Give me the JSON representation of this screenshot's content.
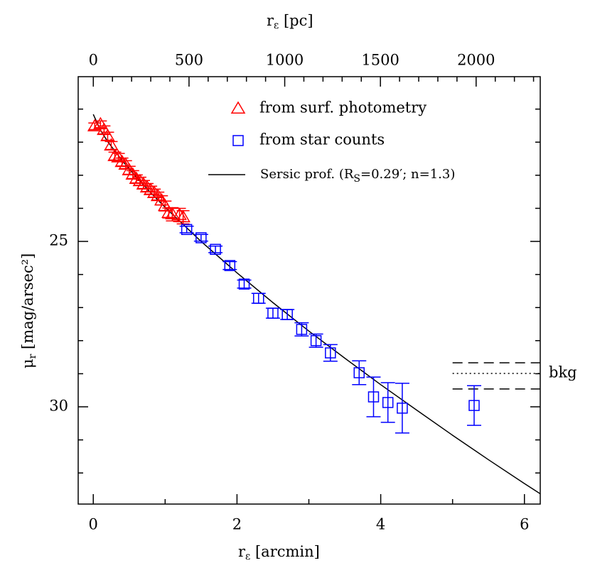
{
  "chart_data": {
    "type": "scatter",
    "xlabel": [
      "r",
      "ε",
      " [arcmin]"
    ],
    "x2label": [
      "r",
      "ε",
      " [pc]"
    ],
    "ylabel": [
      "μ",
      "r",
      " [mag/arsec²]"
    ],
    "xlim": [
      -0.21,
      6.22
    ],
    "xticks": [
      0,
      2,
      4,
      6
    ],
    "xminorticks": [
      1,
      3,
      5
    ],
    "x2lim": [
      -79,
      2335
    ],
    "x2ticks": [
      0,
      500,
      1000,
      1500,
      2000
    ],
    "x2minorticks": [
      100,
      200,
      300,
      400,
      600,
      700,
      800,
      900,
      1100,
      1200,
      1300,
      1400,
      1600,
      1700,
      1800,
      1900,
      2100,
      2200,
      2300
    ],
    "ylim": [
      32.94,
      20.02
    ],
    "yticks": [
      25,
      30
    ],
    "yminorticks": [
      21,
      22,
      23,
      24,
      26,
      27,
      28,
      29,
      31,
      32
    ],
    "series": [
      {
        "name": "from surf. photometry",
        "color": "#ff0000",
        "marker": "triangle",
        "x": [
          0.02,
          0.1,
          0.15,
          0.2,
          0.25,
          0.3,
          0.35,
          0.4,
          0.45,
          0.5,
          0.55,
          0.6,
          0.65,
          0.7,
          0.75,
          0.8,
          0.85,
          0.9,
          0.95,
          1.0,
          1.05,
          1.1,
          1.2,
          1.25
        ],
        "values": [
          21.52,
          21.46,
          21.63,
          21.82,
          22.1,
          22.42,
          22.46,
          22.6,
          22.68,
          22.85,
          22.98,
          23.11,
          23.18,
          23.28,
          23.37,
          23.45,
          23.54,
          23.63,
          23.76,
          23.93,
          24.14,
          24.18,
          24.2,
          24.27
        ],
        "errors": [
          0.1,
          0.1,
          0.12,
          0.12,
          0.12,
          0.12,
          0.12,
          0.12,
          0.12,
          0.12,
          0.12,
          0.12,
          0.12,
          0.12,
          0.12,
          0.12,
          0.12,
          0.12,
          0.14,
          0.15,
          0.15,
          0.2,
          0.2,
          0.2
        ]
      },
      {
        "name": "from star counts",
        "color": "#0000ff",
        "marker": "square",
        "x": [
          1.3,
          1.5,
          1.7,
          1.9,
          2.1,
          2.3,
          2.5,
          2.7,
          2.9,
          3.1,
          3.3,
          3.7,
          3.9,
          4.1,
          4.3,
          5.3
        ],
        "values": [
          24.64,
          24.89,
          25.24,
          25.73,
          26.29,
          26.72,
          27.17,
          27.21,
          27.66,
          28.0,
          28.37,
          28.97,
          29.7,
          29.87,
          30.04,
          29.96
        ],
        "errors": [
          0.1,
          0.1,
          0.1,
          0.12,
          0.12,
          0.15,
          0.15,
          0.15,
          0.2,
          0.2,
          0.25,
          0.36,
          0.6,
          0.6,
          0.75,
          0.6
        ]
      }
    ],
    "line": {
      "name": [
        "Sersic prof. (R",
        "S",
        "=0.29′; n=1.3)"
      ],
      "color": "#000000",
      "x": [
        0,
        0.1,
        0.2,
        0.4,
        0.6,
        0.8,
        1.0,
        1.5,
        2.0,
        2.5,
        3.0,
        3.5,
        4.0,
        4.5,
        5.0,
        5.5,
        6.0,
        6.22
      ],
      "values": [
        21.16,
        21.64,
        21.98,
        22.55,
        23.06,
        23.53,
        23.97,
        25.0,
        25.95,
        26.85,
        27.71,
        28.53,
        29.33,
        30.1,
        30.86,
        31.6,
        32.32,
        32.63
      ]
    },
    "background": {
      "label": "bkg",
      "xrange": [
        5.0,
        6.22
      ],
      "levels": [
        28.67,
        28.99,
        29.46
      ],
      "styles": [
        "dashed",
        "dotted",
        "dashed"
      ]
    }
  }
}
